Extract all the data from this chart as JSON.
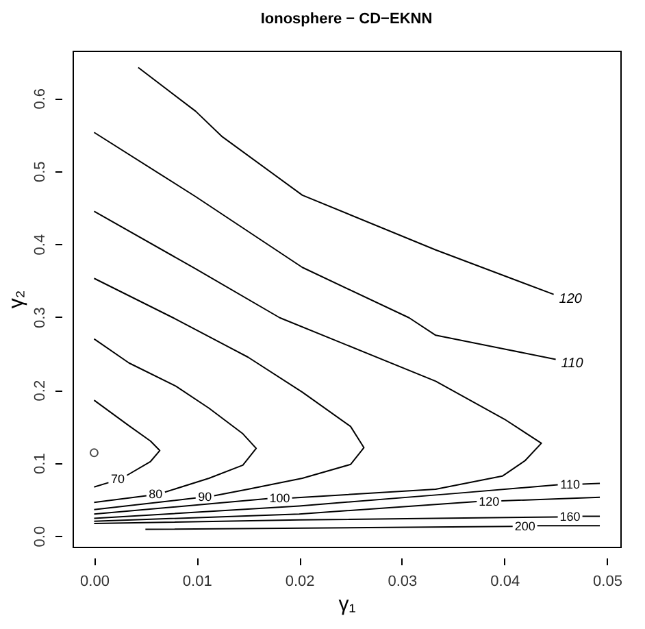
{
  "chart_data": {
    "type": "line",
    "title": "Ionosphere − CD−EKNN",
    "xlabel": "γ₁",
    "ylabel": "γ₂",
    "xlim": [
      -0.0021,
      0.0513
    ],
    "ylim": [
      -0.0149,
      0.665
    ],
    "xticks": [
      {
        "value": 0,
        "label": "0.00"
      },
      {
        "value": 0.01,
        "label": "0.01"
      },
      {
        "value": 0.02,
        "label": "0.02"
      },
      {
        "value": 0.03,
        "label": "0.03"
      },
      {
        "value": 0.04,
        "label": "0.04"
      },
      {
        "value": 0.05,
        "label": "0.05"
      }
    ],
    "yticks": [
      {
        "value": 0,
        "label": "0.0"
      },
      {
        "value": 0.1,
        "label": "0.1"
      },
      {
        "value": 0.2,
        "label": "0.2"
      },
      {
        "value": 0.3,
        "label": "0.3"
      },
      {
        "value": 0.4,
        "label": "0.4"
      },
      {
        "value": 0.5,
        "label": "0.5"
      },
      {
        "value": 0.6,
        "label": "0.6"
      }
    ],
    "grid": false,
    "line_style": "solid",
    "series": [
      {
        "name": "70",
        "color": "#000000",
        "x": [
          0,
          0.0034,
          0.0055,
          0.0064,
          0.0055,
          0.0032,
          0.0023,
          0.0014,
          0
        ],
        "values": [
          0.186,
          0.151,
          0.13,
          0.117,
          0.102,
          0.083,
          null,
          0.073,
          0.067
        ]
      },
      {
        "name": "80",
        "color": "#000000",
        "x": [
          0,
          0.0034,
          0.008,
          0.0112,
          0.0145,
          0.0158,
          0.0145,
          0.0112,
          0.0069,
          0.006,
          0.0051,
          0
        ],
        "values": [
          0.27,
          0.237,
          0.205,
          0.175,
          0.14,
          0.12,
          0.097,
          0.079,
          0.06,
          null,
          0.055,
          0.046
        ]
      },
      {
        "name": "90",
        "color": "#000000",
        "x": [
          0,
          0.0077,
          0.015,
          0.0203,
          0.025,
          0.0263,
          0.025,
          0.0203,
          0.015,
          0.0117,
          0.0108,
          0.0099,
          0
        ],
        "values": [
          0.353,
          0.299,
          0.245,
          0.197,
          0.15,
          0.121,
          0.098,
          0.079,
          0.064,
          0.055,
          null,
          0.052,
          0.036
        ]
      },
      {
        "name": "100",
        "color": "#000000",
        "x": [
          0,
          0.0099,
          0.0181,
          0.0333,
          0.04,
          0.0436,
          0.042,
          0.0398,
          0.0333,
          0.0193,
          0.0181,
          0.0169,
          0
        ],
        "values": [
          0.445,
          0.366,
          0.299,
          0.212,
          0.16,
          0.127,
          0.103,
          0.082,
          0.064,
          0.052,
          null,
          0.051,
          0.03
        ]
      },
      {
        "name": "110",
        "color": "#000000",
        "x": [
          0,
          0.0099,
          0.0203,
          0.0307,
          0.0333,
          0.045
        ],
        "values": [
          0.553,
          0.465,
          0.368,
          0.299,
          0.275,
          0.242
        ]
      },
      {
        "name": "120",
        "color": "#000000",
        "x": [
          0.0043,
          0.0099,
          0.0125,
          0.0203,
          0.0333,
          0.0448
        ],
        "values": [
          0.642,
          0.582,
          0.547,
          0.467,
          0.392,
          0.331
        ]
      },
      {
        "name": "110",
        "color": "#000000",
        "x": [
          0,
          0.02,
          0.035,
          0.0452,
          0.0464,
          0.0476,
          0.0493
        ],
        "values": [
          0.024,
          0.041,
          0.058,
          0.07,
          null,
          0.071,
          0.072
        ]
      },
      {
        "name": "120",
        "color": "#000000",
        "x": [
          0,
          0.02,
          0.0373,
          0.0385,
          0.0397,
          0.0493
        ],
        "values": [
          0.02,
          0.03,
          0.047,
          null,
          0.048,
          0.053
        ]
      },
      {
        "name": "160",
        "color": "#000000",
        "x": [
          0,
          0.02,
          0.0452,
          0.0464,
          0.0476,
          0.0493
        ],
        "values": [
          0.017,
          0.022,
          0.026,
          null,
          0.027,
          0.027
        ]
      },
      {
        "name": "200",
        "color": "#000000",
        "x": [
          0.005,
          0.0408,
          0.042,
          0.0432,
          0.0493
        ],
        "values": [
          0.009,
          0.013,
          null,
          0.014,
          0.014
        ]
      },
      {
        "type": "scatter",
        "marker": "circle",
        "color": "#000000",
        "x": [
          0
        ],
        "values": [
          0.114
        ]
      }
    ]
  }
}
